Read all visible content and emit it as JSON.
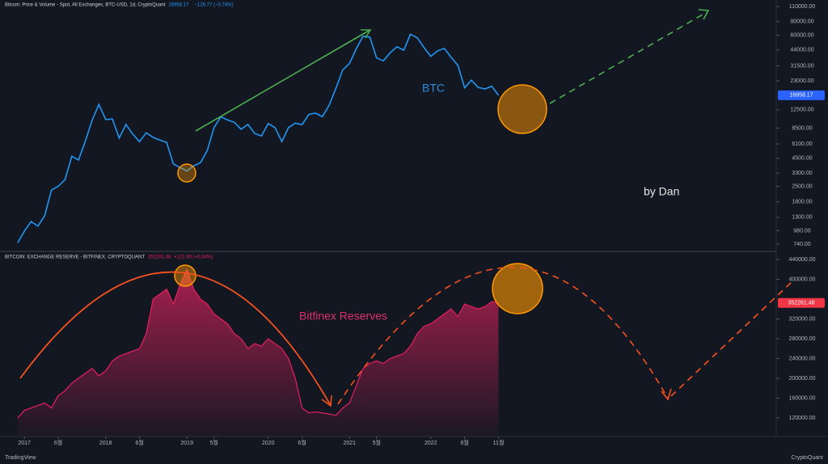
{
  "chart_data": [
    {
      "type": "line",
      "title": "Bitcoin: Price & Volume - Spot, All Exchanges, BTC-USD, 1d, CryptoQuant",
      "change": "−126.77 (−0.74%)",
      "annotations": [
        "BTC",
        "by Dan"
      ],
      "log_scale": true,
      "color": "#2196f3",
      "xlim": [
        "2016-10",
        "2026-04"
      ],
      "ylim": [
        646,
        126000
      ],
      "yticks": [
        {
          "value": 110000,
          "label": "110000.00"
        },
        {
          "value": 80000,
          "label": "80000.00"
        },
        {
          "value": 60000,
          "label": "60000.00"
        },
        {
          "value": 44000,
          "label": "44000.00"
        },
        {
          "value": 31500,
          "label": "31500.00"
        },
        {
          "value": 23000,
          "label": "23000.00"
        },
        {
          "value": 12500,
          "label": "12500.00"
        },
        {
          "value": 8500,
          "label": "8500.00"
        },
        {
          "value": 6100,
          "label": "6100.00"
        },
        {
          "value": 4500,
          "label": "4500.00"
        },
        {
          "value": 3300,
          "label": "3300.00"
        },
        {
          "value": 2500,
          "label": "2500.00"
        },
        {
          "value": 1800,
          "label": "1800.00"
        },
        {
          "value": 1300,
          "label": "1300.00"
        },
        {
          "value": 980,
          "label": "980.00"
        },
        {
          "value": 740,
          "label": "740.00"
        }
      ],
      "x": [
        "2016-12",
        "2017-01",
        "2017-02",
        "2017-03",
        "2017-04",
        "2017-05",
        "2017-06",
        "2017-07",
        "2017-08",
        "2017-09",
        "2017-10",
        "2017-11",
        "2017-12",
        "2018-01",
        "2018-02",
        "2018-03",
        "2018-04",
        "2018-05",
        "2018-06",
        "2018-07",
        "2018-08",
        "2018-09",
        "2018-10",
        "2018-11",
        "2018-12",
        "2019-01",
        "2019-02",
        "2019-03",
        "2019-04",
        "2019-05",
        "2019-06",
        "2019-07",
        "2019-08",
        "2019-09",
        "2019-10",
        "2019-11",
        "2019-12",
        "2020-01",
        "2020-02",
        "2020-03",
        "2020-04",
        "2020-05",
        "2020-06",
        "2020-07",
        "2020-08",
        "2020-09",
        "2020-10",
        "2020-11",
        "2020-12",
        "2021-01",
        "2021-02",
        "2021-03",
        "2021-04",
        "2021-05",
        "2021-06",
        "2021-07",
        "2021-08",
        "2021-09",
        "2021-10",
        "2021-11",
        "2021-12",
        "2022-01",
        "2022-02",
        "2022-03",
        "2022-04",
        "2022-05",
        "2022-06",
        "2022-07",
        "2022-08",
        "2022-09",
        "2022-10",
        "2022-11"
      ],
      "values": [
        760,
        970,
        1190,
        1080,
        1350,
        2300,
        2500,
        2870,
        4700,
        4340,
        6450,
        10000,
        14000,
        10200,
        10300,
        6900,
        9200,
        7500,
        6400,
        7700,
        7000,
        6600,
        6300,
        4000,
        3700,
        3450,
        3850,
        4100,
        5300,
        8600,
        10800,
        10100,
        9600,
        8300,
        9200,
        7600,
        7200,
        9350,
        8600,
        6400,
        8600,
        9450,
        9150,
        11350,
        11650,
        10800,
        13800,
        19700,
        29000,
        33100,
        45100,
        58800,
        57700,
        37300,
        35000,
        41500,
        47100,
        43800,
        61300,
        57000,
        46300,
        38500,
        43200,
        45500,
        37700,
        31800,
        19900,
        23300,
        20000,
        19400,
        20500,
        16958.17
      ]
    },
    {
      "type": "area",
      "title": "BITCOIN: EXCHANGE RESERVE - BITFINEX, CRYPTOQUANT",
      "change": "+121.90 (+0.04%)",
      "annotations": [
        "Bitfinex Reserves"
      ],
      "color": "#e91e63",
      "xlim": [
        "2016-10",
        "2026-04"
      ],
      "ylim": [
        82400,
        454700
      ],
      "yticks": [
        {
          "value": 440000,
          "label": "440000.00"
        },
        {
          "value": 400000,
          "label": "400000.00"
        },
        {
          "value": 320000,
          "label": "320000.00"
        },
        {
          "value": 280000,
          "label": "280000.00"
        },
        {
          "value": 240000,
          "label": "240000.00"
        },
        {
          "value": 200000,
          "label": "200000.00"
        },
        {
          "value": 160000,
          "label": "160000.00"
        },
        {
          "value": 120000,
          "label": "120000.00"
        }
      ],
      "xticks": [
        {
          "value": "2017-01",
          "label": "2017"
        },
        {
          "value": "2017-06",
          "label": "6월"
        },
        {
          "value": "2018-01",
          "label": "2018"
        },
        {
          "value": "2018-06",
          "label": "6월"
        },
        {
          "value": "2019-01",
          "label": "2019"
        },
        {
          "value": "2019-05",
          "label": "5월"
        },
        {
          "value": "2020-01",
          "label": "2020"
        },
        {
          "value": "2020-06",
          "label": "6월"
        },
        {
          "value": "2021-01",
          "label": "2021"
        },
        {
          "value": "2021-05",
          "label": "5월"
        },
        {
          "value": "2022-01",
          "label": "2022"
        },
        {
          "value": "2022-06",
          "label": "6월"
        },
        {
          "value": "2022-11",
          "label": "11월"
        }
      ],
      "x": [
        "2016-12",
        "2017-01",
        "2017-02",
        "2017-03",
        "2017-04",
        "2017-05",
        "2017-06",
        "2017-07",
        "2017-08",
        "2017-09",
        "2017-10",
        "2017-11",
        "2017-12",
        "2018-01",
        "2018-02",
        "2018-03",
        "2018-04",
        "2018-05",
        "2018-06",
        "2018-07",
        "2018-08",
        "2018-09",
        "2018-10",
        "2018-11",
        "2018-12",
        "2019-01",
        "2019-02",
        "2019-03",
        "2019-04",
        "2019-05",
        "2019-06",
        "2019-07",
        "2019-08",
        "2019-09",
        "2019-10",
        "2019-11",
        "2019-12",
        "2020-01",
        "2020-02",
        "2020-03",
        "2020-04",
        "2020-05",
        "2020-06",
        "2020-07",
        "2020-08",
        "2020-09",
        "2020-10",
        "2020-11",
        "2020-12",
        "2021-01",
        "2021-02",
        "2021-03",
        "2021-04",
        "2021-05",
        "2021-06",
        "2021-07",
        "2021-08",
        "2021-09",
        "2021-10",
        "2021-11",
        "2021-12",
        "2022-01",
        "2022-02",
        "2022-03",
        "2022-04",
        "2022-05",
        "2022-06",
        "2022-07",
        "2022-08",
        "2022-09",
        "2022-10",
        "2022-11"
      ],
      "values": [
        120000,
        135000,
        140000,
        145000,
        150000,
        140000,
        165000,
        175000,
        190000,
        200000,
        210000,
        220000,
        205000,
        215000,
        235000,
        245000,
        250000,
        255000,
        260000,
        290000,
        360000,
        370000,
        380000,
        350000,
        390000,
        420000,
        380000,
        360000,
        350000,
        330000,
        320000,
        310000,
        290000,
        280000,
        260000,
        270000,
        265000,
        280000,
        270000,
        260000,
        240000,
        200000,
        140000,
        130000,
        132000,
        130000,
        128000,
        125000,
        140000,
        150000,
        185000,
        220000,
        230000,
        235000,
        230000,
        240000,
        245000,
        250000,
        265000,
        290000,
        305000,
        310000,
        320000,
        330000,
        340000,
        325000,
        350000,
        345000,
        340000,
        345000,
        355000,
        352261.48
      ]
    }
  ],
  "watermarks": {
    "left": "TradingView",
    "right": "CryptoQuant"
  }
}
